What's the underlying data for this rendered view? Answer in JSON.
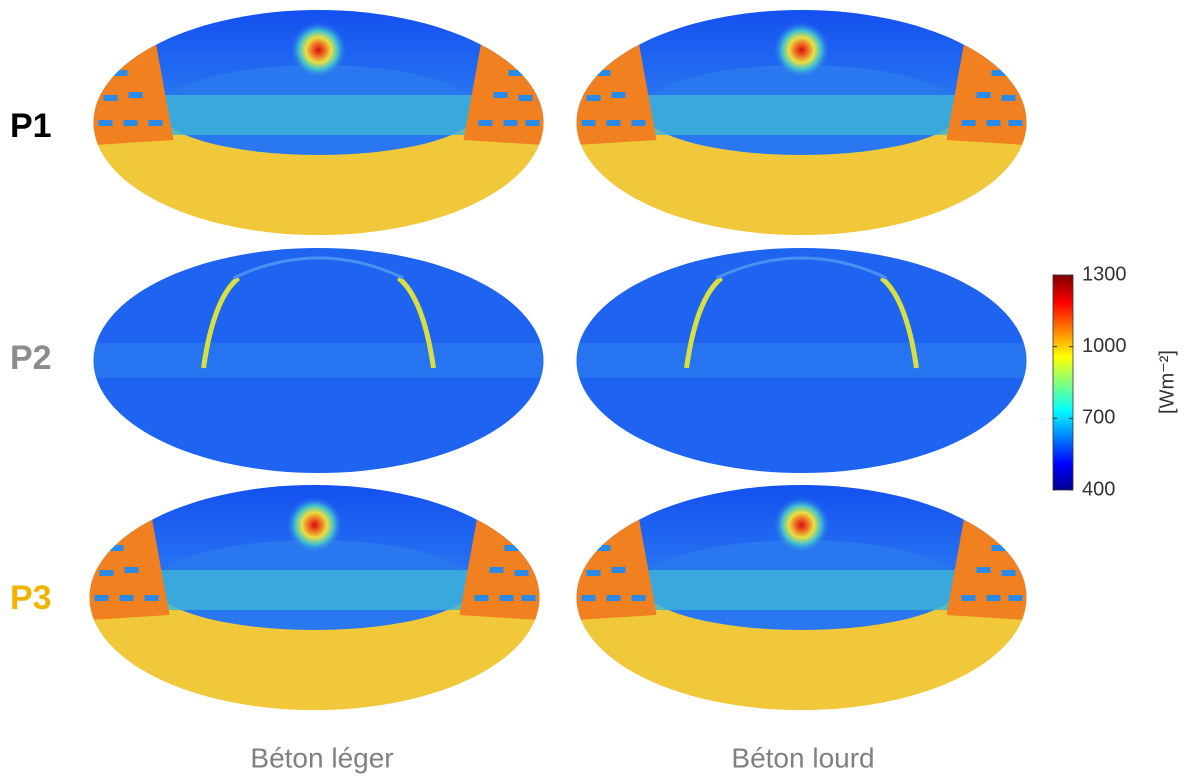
{
  "rows": [
    {
      "label": "P1",
      "color": "#000000"
    },
    {
      "label": "P2",
      "color": "#8c8c8c"
    },
    {
      "label": "P3",
      "color": "#f0b400"
    }
  ],
  "columns": [
    "Béton léger",
    "Béton lourd"
  ],
  "colorbar": {
    "label": "[Wm⁻²]",
    "lim": [
      400,
      1300
    ],
    "ticks": [
      400,
      700,
      1000,
      1300
    ]
  }
}
